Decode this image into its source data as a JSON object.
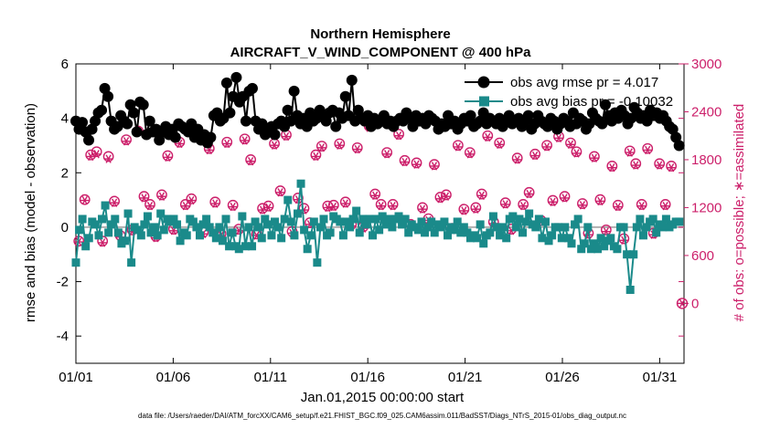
{
  "chart_data": {
    "type": "line",
    "title": "Northern Hemisphere",
    "subtitle": "AIRCRAFT_V_WIND_COMPONENT @ 400 hPa",
    "xlabel": "Jan.01,2015 00:00:00 start",
    "ylabel_left": "rmse and bias (model - observation)",
    "ylabel_right": "# of obs: o=possible; ∗=assimilated",
    "footer": "data file: /Users/raeder/DAI/ATM_forcXX/CAM6_setup/f.e21.FHIST_BGC.f09_025.CAM6assim.011/BadSST/Diags_NTrS_2015-01/obs_diag_output.nc",
    "x_ticks": [
      "01/01",
      "01/06",
      "01/11",
      "01/16",
      "01/21",
      "01/26",
      "01/31"
    ],
    "y_left_ticks": [
      "6",
      "4",
      "2",
      "0",
      "-2",
      "-4"
    ],
    "y_right_ticks": [
      "3000",
      "2400",
      "1800",
      "1200",
      "600",
      "0"
    ],
    "x_range_days": [
      0,
      31.25
    ],
    "y_left_range": [
      -5,
      6
    ],
    "y_right_range": [
      -750,
      3000
    ],
    "legend": [
      {
        "label": "obs avg rmse pr = 4.017",
        "color": "#000000",
        "marker": "circle"
      },
      {
        "label": "obs avg bias pr = -0.10032",
        "color": "#1a8a8a",
        "marker": "square"
      }
    ],
    "colors": {
      "rmse": "#000000",
      "bias": "#1a8a8a",
      "obs": "#cc1f6a",
      "zero_line": "#b0b0b0"
    },
    "series": [
      {
        "name": "rmse",
        "values": [
          3.9,
          3.6,
          3.85,
          3.5,
          3.2,
          3.6,
          3.9,
          4.2,
          4.3,
          5.1,
          4.8,
          3.9,
          3.6,
          3.7,
          4.1,
          3.9,
          3.8,
          4.5,
          4.2,
          3.5,
          4.6,
          4.5,
          3.4,
          3.9,
          3.5,
          3.6,
          3.2,
          3.5,
          3.7,
          3.4,
          3.6,
          3.3,
          3.8,
          3.7,
          3.6,
          3.5,
          3.8,
          3.3,
          3.6,
          3.2,
          3.4,
          3.1,
          3.3,
          4.1,
          4.2,
          3.9,
          4.0,
          5.3,
          4.2,
          4.8,
          5.5,
          4.6,
          4.8,
          3.9,
          5.0,
          5.1,
          3.9,
          3.6,
          3.8,
          3.4,
          3.6,
          3.7,
          3.4,
          3.8,
          3.9,
          3.7,
          4.3,
          3.9,
          5.0,
          4.1,
          3.8,
          4.0,
          3.7,
          4.2,
          3.9,
          4.0,
          4.3,
          4.1,
          3.9,
          4.2,
          4.3,
          3.7,
          4.2,
          4.0,
          4.8,
          4.1,
          5.4,
          3.9,
          4.3,
          4.0,
          3.9,
          4.1,
          3.7,
          4.0,
          3.8,
          3.9,
          4.1,
          3.8,
          3.9,
          3.7,
          3.9,
          4.0,
          3.9,
          4.2,
          4.0,
          3.7,
          4.1,
          3.9,
          4.0,
          3.8,
          4.1,
          4.0,
          3.9,
          3.6,
          3.8,
          3.7,
          4.1,
          3.8,
          3.9,
          3.6,
          3.8,
          4.0,
          3.9,
          4.1,
          3.7,
          3.8,
          3.9,
          4.2,
          3.8,
          4.0,
          3.9,
          3.8,
          4.0,
          3.7,
          3.9,
          4.1,
          3.8,
          3.9,
          4.0,
          3.7,
          3.9,
          4.1,
          3.6,
          3.8,
          4.1,
          3.9,
          3.8,
          3.7,
          4.0,
          3.9,
          3.6,
          3.8,
          4.0,
          3.9,
          3.7,
          4.2,
          3.8,
          4.0,
          3.9,
          3.6,
          3.8,
          4.2,
          4.0,
          3.9,
          3.8,
          4.5,
          4.1,
          3.9,
          4.2,
          4.0,
          4.3,
          4.1,
          3.8,
          4.0,
          4.4,
          4.2,
          4.0,
          4.1,
          3.9,
          4.3,
          4.1,
          4.2,
          4.0,
          4.1,
          3.9,
          3.7,
          3.6,
          3.3,
          3.0
        ]
      },
      {
        "name": "bias",
        "values": [
          -1.3,
          -0.1,
          0.3,
          -0.7,
          -0.4,
          0.2,
          0.1,
          -0.3,
          0.3,
          0.8,
          -0.2,
          0.1,
          0.3,
          -0.2,
          -0.6,
          -0.5,
          0.5,
          -1.3,
          0.0,
          -0.1,
          -0.3,
          0.1,
          0.4,
          -0.2,
          0.0,
          -0.3,
          0.5,
          -0.1,
          0.3,
          0.2,
          0.3,
          0.1,
          -0.5,
          -0.2,
          -0.3,
          0.3,
          0.2,
          0.0,
          -0.3,
          0.1,
          0.3,
          0.0,
          -0.2,
          -0.4,
          0.0,
          -0.5,
          0.3,
          -0.7,
          -0.2,
          -0.7,
          -0.8,
          0.4,
          -0.7,
          0.0,
          -0.7,
          0.2,
          0.0,
          -0.4,
          0.3,
          0.1,
          -0.3,
          0.2,
          0.0,
          -0.4,
          0.3,
          1.0,
          0.2,
          -0.3,
          0.5,
          1.6,
          -0.1,
          -0.8,
          -0.3,
          0.2,
          -1.3,
          0.0,
          0.3,
          -0.3,
          -0.2,
          0.4,
          0.3,
          0.2,
          -0.3,
          0.2,
          0.0,
          0.3,
          0.6,
          -0.2,
          0.3,
          0.1,
          0.3,
          -0.3,
          0.3,
          -0.1,
          0.4,
          0.1,
          0.3,
          0.0,
          0.3,
          0.4,
          0.1,
          0.3,
          -0.2,
          0.1,
          0.0,
          -0.1,
          0.2,
          -0.2,
          0.0,
          0.2,
          -0.2,
          0.1,
          0.0,
          0.2,
          -0.3,
          0.0,
          -0.1,
          0.2,
          -0.2,
          0.0,
          -0.2,
          -0.4,
          -0.3,
          -0.4,
          0.1,
          -0.6,
          -0.3,
          -0.2,
          0.4,
          0.0,
          -0.3,
          0.0,
          -0.4,
          0.3,
          0.4,
          0.0,
          0.3,
          -0.2,
          0.2,
          0.5,
          0.1,
          0.0,
          0.3,
          -0.4,
          0.2,
          -0.5,
          -0.3,
          0.0,
          0.0,
          -0.4,
          0.0,
          -0.4,
          -0.6,
          0.1,
          0.3,
          -0.8,
          -0.6,
          0.0,
          -0.8,
          -0.6,
          -0.8,
          -0.4,
          -0.7,
          -0.5,
          -0.4,
          -0.7,
          -0.8,
          0.0,
          0.0,
          -1.0,
          -2.3,
          -1.0,
          0.0,
          0.3,
          -0.3,
          0.0,
          0.2,
          0.3,
          -0.2,
          0.1,
          0.0,
          0.3,
          0.0,
          0.1,
          0.2,
          0.2
        ]
      },
      {
        "name": "obs possible",
        "values": [
          780,
          1300,
          1860,
          1900,
          780,
          1840,
          1280,
          850,
          2050,
          920,
          2160,
          1340,
          1240,
          840,
          1360,
          1850,
          930,
          2020,
          1240,
          1310,
          2100,
          890,
          1940,
          1270,
          870,
          2020,
          1230,
          930,
          2060,
          1800,
          870,
          1190,
          1220,
          2000,
          1410,
          2110,
          900,
          1320,
          1190,
          1010,
          1860,
          1970,
          1220,
          1230,
          2000,
          1270,
          990,
          1950,
          960,
          2220,
          1370,
          1240,
          1890,
          1240,
          2120,
          1790,
          990,
          1760,
          1200,
          1060,
          1740,
          1330,
          1360,
          940,
          1980,
          1180,
          1890,
          1200,
          1370,
          2100,
          1020,
          2010,
          1260,
          930,
          1820,
          1240,
          1390,
          1870,
          1040,
          1980,
          1290,
          2090,
          1340,
          2010,
          1900,
          1250,
          880,
          1840,
          1300,
          920,
          1720,
          1230,
          810,
          1910,
          1750,
          1240,
          1940,
          880,
          1750,
          1240,
          1720
        ]
      },
      {
        "name": "obs assimilated",
        "values": [
          770,
          1290,
          1840,
          1870,
          760,
          1810,
          1260,
          830,
          2030,
          900,
          2150,
          1320,
          1220,
          820,
          1340,
          1830,
          910,
          2000,
          1220,
          1290,
          2080,
          870,
          1920,
          1250,
          850,
          2000,
          1210,
          910,
          2040,
          1780,
          850,
          1170,
          1200,
          1980,
          1390,
          2090,
          880,
          1300,
          1170,
          990,
          1840,
          1950,
          1200,
          1210,
          1980,
          1250,
          970,
          1930,
          940,
          2200,
          1350,
          1220,
          1870,
          1220,
          2100,
          1770,
          970,
          1740,
          1180,
          1040,
          1720,
          1310,
          1340,
          920,
          1960,
          1160,
          1870,
          1180,
          1350,
          2080,
          1000,
          1990,
          1240,
          910,
          1800,
          1220,
          1370,
          1850,
          1020,
          1960,
          1270,
          2070,
          1320,
          1990,
          1880,
          1230,
          860,
          1820,
          1280,
          900,
          1700,
          1210,
          790,
          1890,
          1730,
          1220,
          1920,
          860,
          1730,
          1220,
          1700
        ]
      }
    ],
    "extra_marker": {
      "name": "terminal obs count",
      "x_day": 31.25,
      "value": 0
    }
  }
}
